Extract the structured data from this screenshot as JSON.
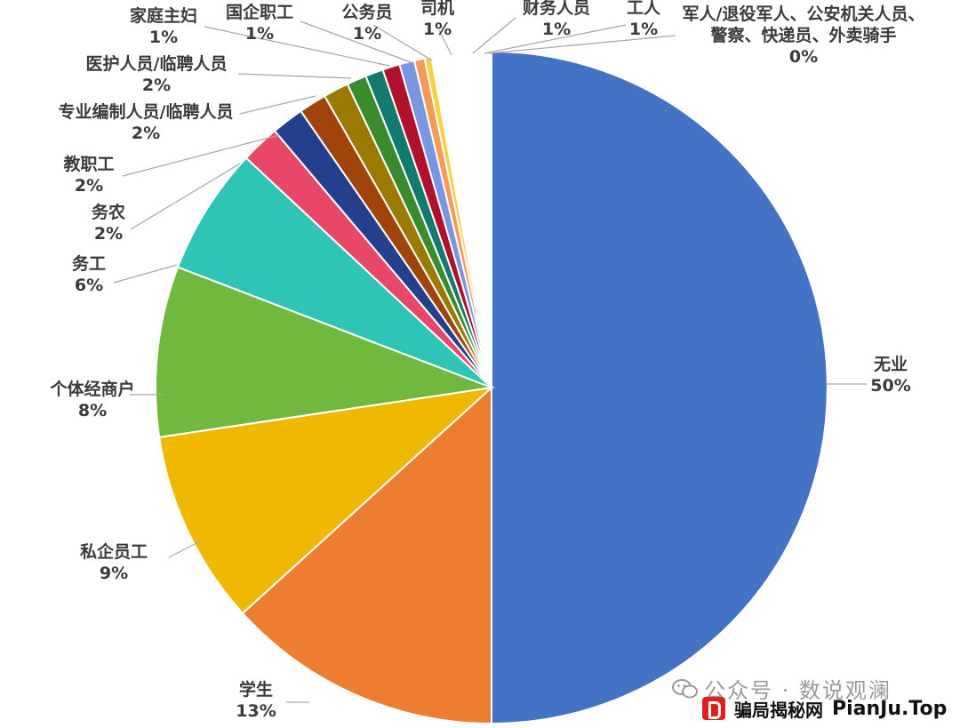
{
  "chart_data": {
    "type": "pie",
    "title": "",
    "slices": [
      {
        "label": "无业",
        "value": 50,
        "display": "50%",
        "color": "#4472c4"
      },
      {
        "label": "学生",
        "value": 13,
        "display": "13%",
        "color": "#ed7d31"
      },
      {
        "label": "私企员工",
        "value": 9,
        "display": "9%",
        "color": "#f1b800"
      },
      {
        "label": "个体经商户",
        "value": 8,
        "display": "8%",
        "color": "#70b93e"
      },
      {
        "label": "务工",
        "value": 6,
        "display": "6%",
        "color": "#2ec4b6"
      },
      {
        "label": "务农",
        "value": 2,
        "display": "2%",
        "color": "#e8476a"
      },
      {
        "label": "教职工",
        "value": 2,
        "display": "2%",
        "color": "#243f8c"
      },
      {
        "label": "专业编制人员/临聘人员",
        "value": 2,
        "display": "2%",
        "color": "#a0440c"
      },
      {
        "label": "医护人员/临聘人员",
        "value": 2,
        "display": "2%",
        "color": "#9a7a00"
      },
      {
        "label": "家庭主妇",
        "value": 1,
        "display": "1%",
        "color": "#3a8a2e"
      },
      {
        "label": "国企职工",
        "value": 1,
        "display": "1%",
        "color": "#137a70"
      },
      {
        "label": "公务员",
        "value": 1,
        "display": "1%",
        "color": "#b0122d"
      },
      {
        "label": "司机",
        "value": 1,
        "display": "1%",
        "color": "#7a96e0"
      },
      {
        "label": "财务人员",
        "value": 1,
        "display": "1%",
        "color": "#f49a5a"
      },
      {
        "label": "工人",
        "value": 1,
        "display": "1%",
        "color": "#f8d040"
      },
      {
        "label": "军人/退役军人、公安机关人员、警察、快递员、外卖骑手",
        "value": 0,
        "display": "0%",
        "color": "#a8d08d"
      }
    ],
    "legend": "none",
    "data_labels": "outside with leader lines"
  },
  "watermark": {
    "text": "公众号 · 数说观澜",
    "icon": "wechat-icon"
  },
  "brand": {
    "icon": "pianju-logo-icon",
    "name_cn": "骗局揭秘网",
    "name_en": "PianJu.Top",
    "color": "#e02020"
  }
}
